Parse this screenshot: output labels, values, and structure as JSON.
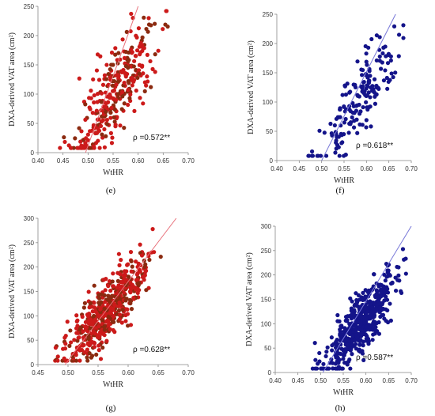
{
  "chart_data": [
    {
      "type": "scatter",
      "panel": "(e)",
      "xlabel": "WtHR",
      "ylabel": "DXA-derived VAT area (cm²)",
      "xlim": [
        0.4,
        0.7
      ],
      "ylim": [
        0,
        250
      ],
      "xticks": [
        "0.40",
        "0.45",
        "0.50",
        "0.55",
        "0.60",
        "0.65",
        "0.70"
      ],
      "yticks": [
        "0",
        "50",
        "100",
        "150",
        "200",
        "250"
      ],
      "annotation": "ρ =0.572**",
      "colors": {
        "points": "#cc1a1a",
        "points_alt": "#8b2a10",
        "line": "#e8707a"
      },
      "regression": {
        "x": [
          0.495,
          0.6
        ],
        "y": [
          0,
          250
        ]
      },
      "cloud": {
        "n": 320,
        "xmin": 0.44,
        "xmax": 0.66,
        "cx": 0.558,
        "cy": 108,
        "slope": 1100,
        "sd": 35,
        "seed": 11
      },
      "grid": false
    },
    {
      "type": "scatter",
      "panel": "(f)",
      "xlabel": "WtHR",
      "ylabel": "DXA-derived VAT area (cm²)",
      "xlim": [
        0.4,
        0.7
      ],
      "ylim": [
        0,
        250
      ],
      "xticks": [
        "0.40",
        "0.45",
        "0.50",
        "0.55",
        "0.60",
        "0.65",
        "0.70"
      ],
      "yticks": [
        "0",
        "50",
        "100",
        "150",
        "200",
        "250"
      ],
      "annotation": "ρ =0.618**",
      "colors": {
        "points": "#14148a",
        "line": "#7878d8"
      },
      "regression": {
        "x": [
          0.5,
          0.665
        ],
        "y": [
          0,
          250
        ]
      },
      "cloud": {
        "n": 180,
        "xmin": 0.47,
        "xmax": 0.69,
        "cx": 0.585,
        "cy": 106,
        "slope": 1100,
        "sd": 30,
        "seed": 23
      },
      "grid": false
    },
    {
      "type": "scatter",
      "panel": "(g)",
      "xlabel": "WtHR",
      "ylabel": "DXA-derived VAT area (cm²)",
      "xlim": [
        0.45,
        0.7
      ],
      "ylim": [
        0,
        300
      ],
      "xticks": [
        "0.45",
        "0.50",
        "0.55",
        "0.60",
        "0.65",
        "0.70"
      ],
      "yticks": [
        "0",
        "50",
        "100",
        "150",
        "200",
        "250",
        "300"
      ],
      "annotation": "ρ =0.628**",
      "colors": {
        "points": "#cc1a1a",
        "points_alt": "#8b2a10",
        "line": "#e8707a"
      },
      "regression": {
        "x": [
          0.495,
          0.68
        ],
        "y": [
          0,
          300
        ]
      },
      "cloud": {
        "n": 520,
        "xmin": 0.475,
        "xmax": 0.655,
        "cx": 0.565,
        "cy": 110,
        "slope": 1300,
        "sd": 30,
        "seed": 37
      },
      "grid": false
    },
    {
      "type": "scatter",
      "panel": "(h)",
      "xlabel": "WtHR",
      "ylabel": "DXA-derived VAT area (cm²)",
      "xlim": [
        0.4,
        0.7
      ],
      "ylim": [
        0,
        300
      ],
      "xticks": [
        "0.40",
        "0.45",
        "0.50",
        "0.55",
        "0.60",
        "0.65",
        "0.70"
      ],
      "yticks": [
        "0",
        "50",
        "100",
        "150",
        "200",
        "250",
        "300"
      ],
      "annotation": "ρ =0.587**",
      "colors": {
        "points": "#14148a",
        "line": "#7878d8"
      },
      "regression": {
        "x": [
          0.505,
          0.7
        ],
        "y": [
          0,
          300
        ]
      },
      "cloud": {
        "n": 500,
        "xmin": 0.48,
        "xmax": 0.69,
        "cx": 0.59,
        "cy": 105,
        "slope": 1150,
        "sd": 30,
        "seed": 53
      },
      "grid": false
    }
  ]
}
